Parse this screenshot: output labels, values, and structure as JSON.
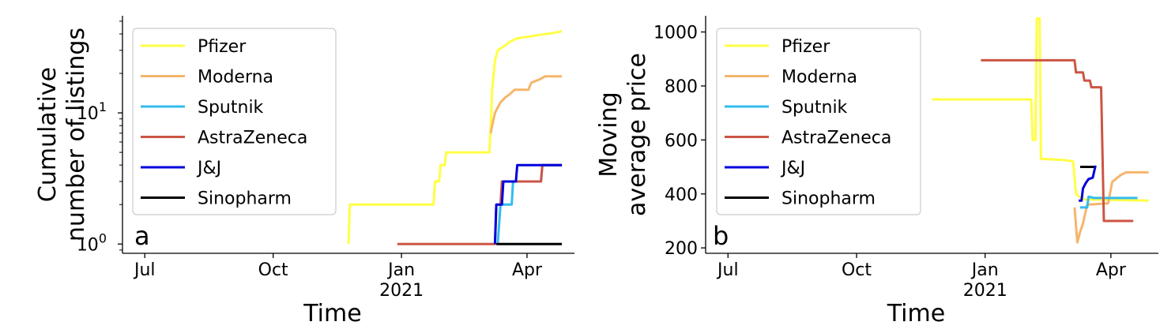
{
  "chart_data": [
    {
      "panel": "a",
      "type": "line",
      "title": "",
      "xlabel": "Time",
      "ylabel": [
        "Cumulative",
        "number of listings"
      ],
      "yscale": "log",
      "ylim": [
        0.85,
        55
      ],
      "xlim": [
        "2020-06-15",
        "2021-05-05"
      ],
      "x_ticks": [
        {
          "date": "2020-07-01",
          "label": "Jul",
          "sublabel": ""
        },
        {
          "date": "2020-10-01",
          "label": "Oct",
          "sublabel": ""
        },
        {
          "date": "2021-01-01",
          "label": "Jan",
          "sublabel": "2021"
        },
        {
          "date": "2021-04-01",
          "label": "Apr",
          "sublabel": ""
        }
      ],
      "y_ticks": [
        {
          "value": 1,
          "label": "1",
          "exp": "0"
        },
        {
          "value": 10,
          "label": "1",
          "exp": "1"
        }
      ],
      "grid": false,
      "legend_position": "top-left",
      "series": [
        {
          "name": "Pfizer",
          "color": "#ffff44",
          "points": [
            [
              "2020-11-24",
              1
            ],
            [
              "2020-11-25",
              2
            ],
            [
              "2021-01-24",
              2
            ],
            [
              "2021-01-25",
              3
            ],
            [
              "2021-01-28",
              3
            ],
            [
              "2021-01-29",
              4
            ],
            [
              "2021-02-01",
              4
            ],
            [
              "2021-02-02",
              5
            ],
            [
              "2021-03-05",
              5
            ],
            [
              "2021-03-06",
              8
            ],
            [
              "2021-03-07",
              15
            ],
            [
              "2021-03-09",
              25
            ],
            [
              "2021-03-11",
              30
            ],
            [
              "2021-03-15",
              32
            ],
            [
              "2021-03-20",
              35
            ],
            [
              "2021-03-25",
              37
            ],
            [
              "2021-04-01",
              38
            ],
            [
              "2021-04-08",
              39
            ],
            [
              "2021-04-15",
              40
            ],
            [
              "2021-04-22",
              41
            ],
            [
              "2021-04-26",
              42
            ]
          ]
        },
        {
          "name": "Moderna",
          "color": "#f5b56b",
          "points": [
            [
              "2021-03-06",
              7
            ],
            [
              "2021-03-07",
              8
            ],
            [
              "2021-03-09",
              10
            ],
            [
              "2021-03-11",
              11
            ],
            [
              "2021-03-13",
              12
            ],
            [
              "2021-03-16",
              13
            ],
            [
              "2021-03-20",
              14
            ],
            [
              "2021-03-23",
              15
            ],
            [
              "2021-04-02",
              15
            ],
            [
              "2021-04-04",
              17
            ],
            [
              "2021-04-10",
              18
            ],
            [
              "2021-04-14",
              19
            ],
            [
              "2021-04-26",
              19
            ]
          ]
        },
        {
          "name": "Sputnik",
          "color": "#33bbee",
          "points": [
            [
              "2021-03-11",
              1
            ],
            [
              "2021-03-13",
              2
            ],
            [
              "2021-03-21",
              2
            ],
            [
              "2021-03-22",
              3
            ],
            [
              "2021-04-11",
              3
            ],
            [
              "2021-04-12",
              4
            ],
            [
              "2021-04-26",
              4
            ]
          ]
        },
        {
          "name": "AstraZeneca",
          "color": "#cc5544",
          "points": [
            [
              "2020-12-29",
              1
            ],
            [
              "2021-03-09",
              1
            ],
            [
              "2021-03-10",
              2
            ],
            [
              "2021-03-13",
              2
            ],
            [
              "2021-03-14",
              3
            ],
            [
              "2021-04-11",
              3
            ],
            [
              "2021-04-12",
              4
            ],
            [
              "2021-04-26",
              4
            ]
          ]
        },
        {
          "name": "J&J",
          "color": "#0000dd",
          "points": [
            [
              "2021-03-09",
              1
            ],
            [
              "2021-03-10",
              2
            ],
            [
              "2021-03-14",
              2
            ],
            [
              "2021-03-15",
              3
            ],
            [
              "2021-03-24",
              3
            ],
            [
              "2021-03-25",
              4
            ],
            [
              "2021-04-26",
              4
            ]
          ]
        },
        {
          "name": "Sinopharm",
          "color": "#000000",
          "points": [
            [
              "2021-03-10",
              1
            ],
            [
              "2021-04-26",
              1
            ]
          ]
        }
      ]
    },
    {
      "panel": "b",
      "type": "line",
      "title": "",
      "xlabel": "Time",
      "ylabel": [
        "Moving",
        "average price"
      ],
      "yscale": "linear",
      "ylim": [
        180,
        1060
      ],
      "xlim": [
        "2020-06-15",
        "2021-05-05"
      ],
      "x_ticks": [
        {
          "date": "2020-07-01",
          "label": "Jul",
          "sublabel": ""
        },
        {
          "date": "2020-10-01",
          "label": "Oct",
          "sublabel": ""
        },
        {
          "date": "2021-01-01",
          "label": "Jan",
          "sublabel": "2021"
        },
        {
          "date": "2021-04-01",
          "label": "Apr",
          "sublabel": ""
        }
      ],
      "y_ticks": [
        {
          "value": 200,
          "label": "200"
        },
        {
          "value": 400,
          "label": "400"
        },
        {
          "value": 600,
          "label": "600"
        },
        {
          "value": 800,
          "label": "800"
        },
        {
          "value": 1000,
          "label": "1000"
        }
      ],
      "grid": false,
      "legend_position": "top-left",
      "series": [
        {
          "name": "Pfizer",
          "color": "#ffff44",
          "points": [
            [
              "2020-11-24",
              750
            ],
            [
              "2021-02-03",
              750
            ],
            [
              "2021-02-04",
              600
            ],
            [
              "2021-02-06",
              600
            ],
            [
              "2021-02-07",
              1050
            ],
            [
              "2021-02-09",
              1050
            ],
            [
              "2021-02-10",
              530
            ],
            [
              "2021-02-28",
              525
            ],
            [
              "2021-03-05",
              520
            ],
            [
              "2021-03-07",
              400
            ],
            [
              "2021-03-12",
              380
            ],
            [
              "2021-04-28",
              375
            ]
          ]
        },
        {
          "name": "Moderna",
          "color": "#f5b56b",
          "points": [
            [
              "2021-03-06",
              350
            ],
            [
              "2021-03-08",
              220
            ],
            [
              "2021-03-10",
              260
            ],
            [
              "2021-03-12",
              290
            ],
            [
              "2021-03-15",
              360
            ],
            [
              "2021-03-30",
              365
            ],
            [
              "2021-04-02",
              445
            ],
            [
              "2021-04-08",
              470
            ],
            [
              "2021-04-12",
              480
            ],
            [
              "2021-04-28",
              480
            ]
          ]
        },
        {
          "name": "Sputnik",
          "color": "#33bbee",
          "points": [
            [
              "2021-03-10",
              350
            ],
            [
              "2021-03-15",
              350
            ],
            [
              "2021-03-16",
              390
            ],
            [
              "2021-03-20",
              385
            ],
            [
              "2021-04-20",
              385
            ]
          ]
        },
        {
          "name": "AstraZeneca",
          "color": "#cc5544",
          "points": [
            [
              "2020-12-29",
              895
            ],
            [
              "2021-03-06",
              895
            ],
            [
              "2021-03-07",
              850
            ],
            [
              "2021-03-12",
              850
            ],
            [
              "2021-03-13",
              820
            ],
            [
              "2021-03-17",
              820
            ],
            [
              "2021-03-18",
              795
            ],
            [
              "2021-03-25",
              795
            ],
            [
              "2021-03-27",
              300
            ],
            [
              "2021-04-17",
              300
            ]
          ]
        },
        {
          "name": "J&J",
          "color": "#0000dd",
          "points": [
            [
              "2021-03-09",
              375
            ],
            [
              "2021-03-11",
              375
            ],
            [
              "2021-03-12",
              420
            ],
            [
              "2021-03-14",
              440
            ],
            [
              "2021-03-16",
              455
            ],
            [
              "2021-03-19",
              460
            ],
            [
              "2021-03-21",
              505
            ]
          ]
        },
        {
          "name": "Sinopharm",
          "color": "#000000",
          "points": [
            [
              "2021-03-10",
              500
            ],
            [
              "2021-03-20",
              500
            ]
          ]
        }
      ]
    }
  ]
}
